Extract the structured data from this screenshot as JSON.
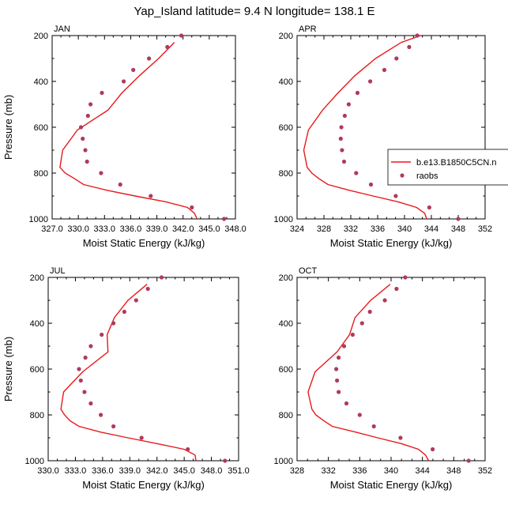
{
  "figure": {
    "title": "Yap_Island  latitude= 9.4 N longitude= 138.1 E"
  },
  "legend": {
    "model_label": "b.e13.B1850C5CN.n",
    "obs_label": "raobs",
    "line_color": "#e8191c",
    "marker_color": "#b03a5b"
  },
  "chart_data": [
    {
      "type": "line",
      "panel": "JAN",
      "xlabel": "Moist Static Energy (kJ/kg)",
      "ylabel": "Pressure (mb)",
      "xlim": [
        327.0,
        348.0
      ],
      "ylim": [
        1000,
        200
      ],
      "xticks": [
        "327.0",
        "330.0",
        "333.0",
        "336.0",
        "339.0",
        "342.0",
        "345.0",
        "348.0"
      ],
      "yticks": [
        "200",
        "400",
        "600",
        "800",
        "1000"
      ],
      "series": [
        {
          "name": "b.e13.B1850C5CN.n",
          "x": [
            343.6,
            343.3,
            342.5,
            340.0,
            336.5,
            333.3,
            330.6,
            329.6,
            328.5,
            327.9,
            328.2,
            329.9,
            333.4,
            335.0,
            337.0,
            339.2,
            341.0
          ],
          "y": [
            1000,
            975,
            950,
            925,
            900,
            875,
            850,
            825,
            800,
            775,
            700,
            612,
            525,
            450,
            375,
            300,
            230
          ]
        },
        {
          "name": "raobs",
          "x": [
            346.7,
            343.0,
            338.3,
            334.8,
            332.6,
            331.0,
            330.8,
            330.5,
            330.3,
            331.1,
            331.4,
            332.7,
            335.2,
            336.3,
            338.1,
            340.2,
            341.8
          ],
          "y": [
            1000,
            950,
            900,
            850,
            800,
            750,
            700,
            650,
            600,
            550,
            500,
            450,
            400,
            350,
            300,
            250,
            200
          ]
        }
      ]
    },
    {
      "type": "line",
      "panel": "APR",
      "xlabel": "Moist Static Energy (kJ/kg)",
      "ylabel": "",
      "xlim": [
        324,
        352
      ],
      "ylim": [
        1000,
        200
      ],
      "xticks": [
        "324",
        "328",
        "332",
        "336",
        "340",
        "344",
        "348",
        "352"
      ],
      "yticks": [
        "200",
        "400",
        "600",
        "800",
        "1000"
      ],
      "series": [
        {
          "name": "b.e13.B1850C5CN.n",
          "x": [
            343.3,
            343.0,
            341.8,
            339.0,
            335.3,
            331.8,
            328.6,
            327.3,
            326.2,
            325.5,
            325.0,
            325.7,
            327.8,
            330.1,
            332.6,
            335.7,
            339.5,
            342.4
          ],
          "y": [
            1000,
            975,
            950,
            925,
            900,
            875,
            850,
            825,
            800,
            775,
            700,
            612,
            525,
            450,
            375,
            300,
            230,
            200
          ]
        },
        {
          "name": "raobs",
          "x": [
            348.0,
            343.7,
            338.7,
            335.0,
            332.8,
            331.0,
            330.7,
            330.5,
            330.6,
            331.1,
            331.7,
            333.0,
            334.9,
            337.0,
            338.8,
            340.7,
            341.9
          ],
          "y": [
            1000,
            950,
            900,
            850,
            800,
            750,
            700,
            650,
            600,
            550,
            500,
            450,
            400,
            350,
            300,
            250,
            200
          ]
        }
      ]
    },
    {
      "type": "line",
      "panel": "JUL",
      "xlabel": "Moist Static Energy (kJ/kg)",
      "ylabel": "Pressure (mb)",
      "xlim": [
        330.0,
        351.0
      ],
      "ylim": [
        1000,
        200
      ],
      "xticks": [
        "330.0",
        "333.0",
        "336.0",
        "339.0",
        "342.0",
        "345.0",
        "348.0",
        "351.0"
      ],
      "yticks": [
        "200",
        "400",
        "600",
        "800",
        "1000"
      ],
      "series": [
        {
          "name": "b.e13.B1850C5CN.n",
          "x": [
            346.3,
            346.2,
            345.0,
            342.0,
            338.8,
            335.8,
            333.4,
            332.4,
            331.8,
            331.4,
            331.7,
            333.8,
            336.6,
            336.5,
            337.3,
            338.8,
            340.9
          ],
          "y": [
            1000,
            975,
            950,
            925,
            900,
            875,
            850,
            825,
            800,
            775,
            700,
            612,
            525,
            450,
            375,
            300,
            230
          ]
        },
        {
          "name": "raobs",
          "x": [
            349.5,
            345.4,
            340.3,
            337.2,
            335.8,
            334.7,
            334.0,
            333.6,
            333.4,
            334.1,
            334.7,
            335.9,
            337.2,
            338.4,
            339.7,
            341.0,
            342.5
          ],
          "y": [
            1000,
            950,
            900,
            850,
            800,
            750,
            700,
            650,
            600,
            550,
            500,
            450,
            400,
            350,
            300,
            250,
            200
          ]
        }
      ]
    },
    {
      "type": "line",
      "panel": "OCT",
      "xlabel": "Moist Static Energy (kJ/kg)",
      "ylabel": "",
      "xlim": [
        328,
        352
      ],
      "ylim": [
        1000,
        200
      ],
      "xticks": [
        "328",
        "332",
        "336",
        "340",
        "344",
        "348",
        "352"
      ],
      "yticks": [
        "200",
        "400",
        "600",
        "800",
        "1000"
      ],
      "series": [
        {
          "name": "b.e13.B1850C5CN.n",
          "x": [
            344.8,
            344.4,
            343.5,
            341.3,
            338.3,
            335.5,
            332.5,
            331.4,
            330.4,
            329.9,
            329.4,
            330.3,
            333.1,
            334.7,
            335.4,
            337.4,
            339.9
          ],
          "y": [
            1000,
            975,
            950,
            925,
            900,
            875,
            850,
            825,
            800,
            775,
            700,
            612,
            525,
            450,
            375,
            300,
            230
          ]
        },
        {
          "name": "raobs",
          "x": [
            349.9,
            345.3,
            341.2,
            337.8,
            336.0,
            334.3,
            333.3,
            333.1,
            333.0,
            333.3,
            334.0,
            335.1,
            336.3,
            337.3,
            339.2,
            340.7,
            341.8
          ],
          "y": [
            1000,
            950,
            900,
            850,
            800,
            750,
            700,
            650,
            600,
            550,
            500,
            450,
            400,
            350,
            300,
            250,
            200
          ]
        }
      ]
    }
  ]
}
